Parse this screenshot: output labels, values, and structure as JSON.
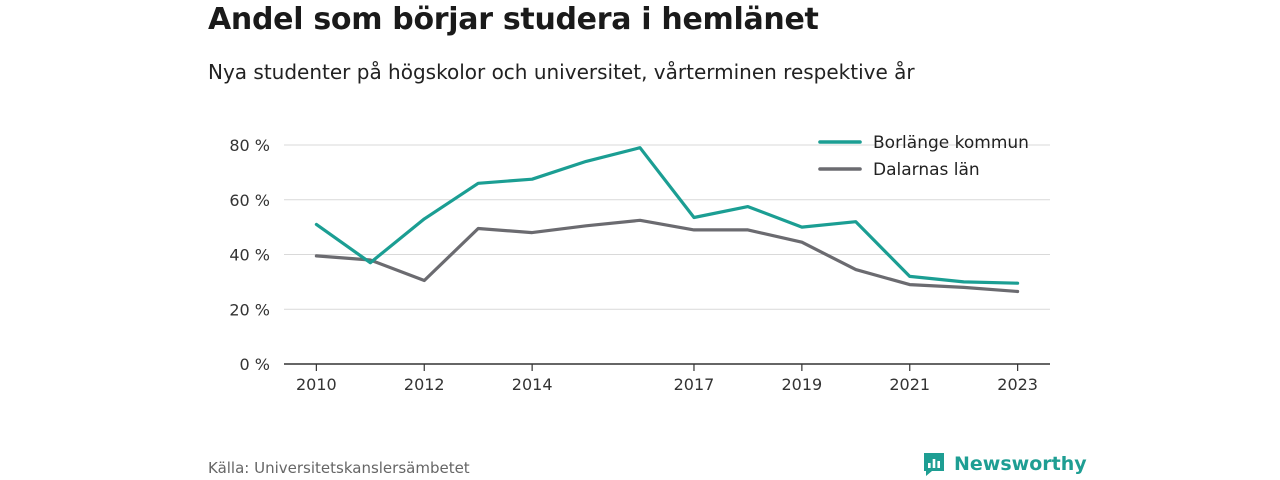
{
  "header": {
    "title": "Andel som börjar studera i hemlänet",
    "subtitle": "Nya studenter på högskolor och universitet, vårterminen respektive år"
  },
  "footer": {
    "source": "Källa: Universitetskanslersämbetet",
    "brand": "Newsworthy",
    "brand_icon": "bar-chart-badge-icon"
  },
  "colors": {
    "borlange": "#1b9e93",
    "dalarna": "#6b6b70",
    "grid": "#d9d9d9",
    "axis": "#333333",
    "brand": "#1e9e93"
  },
  "chart_data": {
    "type": "line",
    "x": [
      2010,
      2011,
      2012,
      2013,
      2014,
      2015,
      2016,
      2017,
      2018,
      2019,
      2020,
      2021,
      2022,
      2023
    ],
    "x_ticks": [
      2010,
      2012,
      2014,
      2017,
      2019,
      2021,
      2023
    ],
    "x_tick_labels": [
      "2010",
      "2012",
      "2014",
      "2017",
      "2019",
      "2021",
      "2023"
    ],
    "xlim": [
      2009.4,
      2023.6
    ],
    "y_ticks": [
      0,
      20,
      40,
      60,
      80
    ],
    "y_tick_labels": [
      "0 %",
      "20 %",
      "40 %",
      "60 %",
      "80 %"
    ],
    "ylim": [
      0,
      85
    ],
    "grid": true,
    "legend_position": "top-right",
    "series": [
      {
        "name": "Borlänge kommun",
        "color": "#1b9e93",
        "values": [
          51,
          37,
          53,
          66,
          67.5,
          74,
          79,
          53.5,
          57.5,
          50,
          52,
          32,
          30,
          29.5
        ]
      },
      {
        "name": "Dalarnas län",
        "color": "#6b6b70",
        "values": [
          39.5,
          38,
          30.5,
          49.5,
          48,
          50.5,
          52.5,
          49,
          49,
          44.5,
          34.5,
          29,
          28,
          26.5
        ]
      }
    ]
  }
}
